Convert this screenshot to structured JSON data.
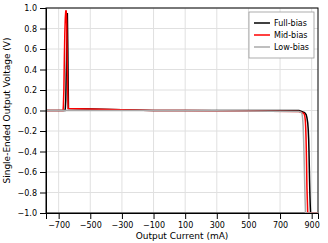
{
  "chart_data": {
    "type": "line",
    "x_label": "Output Current (mA)",
    "y_label": "Single-Ended Output Voltage (V)",
    "xlim": [
      -780,
      940
    ],
    "ylim": [
      -1,
      1
    ],
    "xticks": [
      {
        "value": -700,
        "label": "−700"
      },
      {
        "value": -500,
        "label": "−500"
      },
      {
        "value": -300,
        "label": "−300"
      },
      {
        "value": -100,
        "label": "−100"
      },
      100,
      300,
      500,
      700,
      900
    ],
    "yticks": [
      {
        "value": -1,
        "label": "−1.0"
      },
      {
        "value": -0.8,
        "label": "−0.8"
      },
      {
        "value": -0.6,
        "label": "−0.6"
      },
      {
        "value": -0.4,
        "label": "−0.4"
      },
      {
        "value": -0.2,
        "label": "−0.2"
      },
      {
        "value": 0,
        "label": "0.0"
      },
      0.2,
      0.4,
      0.6,
      0.8,
      {
        "value": 1,
        "label": "1.0"
      }
    ],
    "grid": true,
    "legend": "upper right",
    "series": [
      {
        "name": "Full-bias",
        "color": "#000000",
        "x": [
          -780,
          -660,
          -658,
          -655,
          -652,
          -650,
          -648,
          -645,
          -642,
          -640,
          -638,
          -100,
          100,
          820,
          855,
          865,
          870,
          875,
          878,
          881,
          883,
          885,
          887,
          889,
          891,
          893,
          940
        ],
        "values": [
          0.0,
          0.0,
          0.02,
          0.1,
          0.35,
          0.5,
          0.7,
          0.95,
          0.6,
          0.3,
          0.02,
          0.0,
          0.0,
          0.0,
          -0.02,
          -0.04,
          -0.07,
          -0.12,
          -0.18,
          -0.28,
          -0.4,
          -0.55,
          -0.7,
          -0.83,
          -0.93,
          -1.0,
          -1.0
        ]
      },
      {
        "name": "Mid-bias",
        "color": "#ff0000",
        "x": [
          -780,
          -672,
          -670,
          -667,
          -664,
          -661,
          -658,
          -655,
          -652,
          -649,
          -646,
          -643,
          -640,
          -100,
          100,
          820,
          852,
          857,
          860,
          862,
          864,
          866,
          868,
          870,
          875,
          940
        ],
        "values": [
          0.0,
          0.0,
          0.05,
          0.2,
          0.5,
          0.75,
          0.9,
          0.97,
          0.97,
          0.85,
          0.5,
          0.2,
          0.02,
          0.0,
          0.0,
          -0.01,
          -0.03,
          -0.06,
          -0.1,
          -0.16,
          -0.25,
          -0.38,
          -0.55,
          -0.75,
          -1.0,
          -1.0
        ]
      },
      {
        "name": "Low-bias",
        "color": "#aaaaaa",
        "x": [
          -780,
          -100,
          100,
          820,
          835,
          840,
          843,
          846,
          849,
          852,
          855,
          858,
          861,
          940
        ],
        "values": [
          0.0,
          0.0,
          0.0,
          -0.01,
          -0.02,
          -0.04,
          -0.08,
          -0.15,
          -0.28,
          -0.45,
          -0.65,
          -0.85,
          -1.0,
          -1.0
        ]
      }
    ]
  }
}
